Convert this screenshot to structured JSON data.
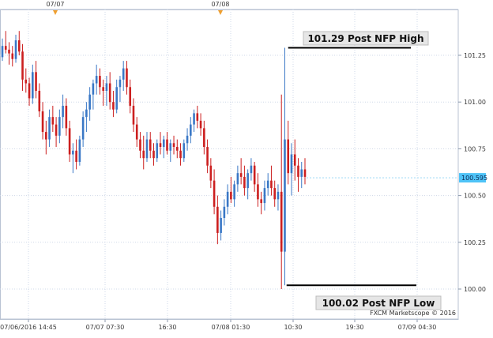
{
  "chart_data": {
    "type": "candlestick",
    "title": "",
    "xlabel": "",
    "ylabel": "",
    "ylim": [
      99.93,
      101.36
    ],
    "y_ticks": [
      "101.25",
      "101.00",
      "100.75",
      "100.50",
      "100.25",
      "100.00"
    ],
    "y_tick_values": [
      101.25,
      101.0,
      100.75,
      100.5,
      100.25,
      100.0
    ],
    "x_ticks": [
      "07/06/2016 14:45",
      "07/07 07:30",
      "16:30",
      "07/08 01:30",
      "10:30",
      "19:30",
      "07/09 04:30"
    ],
    "day_markers": [
      "07/07",
      "07/08"
    ],
    "current_price": "100.595",
    "credit": "FXCM Marketscope © 2016",
    "annotations": [
      {
        "label": "101.29 Post NFP High",
        "value": 101.29
      },
      {
        "label": "100.02 Post NFP Low",
        "value": 100.02
      }
    ],
    "colors": {
      "up": "#3a78c6",
      "down": "#cc1f1f",
      "tag": "#4fc3f7",
      "marker": "#f0a030",
      "grid": "#cfd8e8"
    },
    "candles": [
      [
        101.24,
        101.34,
        101.22,
        101.3
      ],
      [
        101.3,
        101.38,
        101.26,
        101.28
      ],
      [
        101.28,
        101.32,
        101.2,
        101.26
      ],
      [
        101.26,
        101.3,
        101.19,
        101.23
      ],
      [
        101.23,
        101.36,
        101.21,
        101.33
      ],
      [
        101.33,
        101.38,
        101.25,
        101.27
      ],
      [
        101.27,
        101.31,
        101.06,
        101.12
      ],
      [
        101.12,
        101.18,
        101.05,
        101.1
      ],
      [
        101.1,
        101.13,
        100.98,
        101.02
      ],
      [
        101.02,
        101.2,
        100.99,
        101.16
      ],
      [
        101.16,
        101.22,
        101.02,
        101.06
      ],
      [
        101.06,
        101.1,
        100.92,
        100.95
      ],
      [
        100.95,
        101.0,
        100.8,
        100.84
      ],
      [
        100.84,
        100.9,
        100.72,
        100.8
      ],
      [
        100.8,
        100.96,
        100.76,
        100.92
      ],
      [
        100.92,
        100.98,
        100.84,
        100.88
      ],
      [
        100.88,
        100.92,
        100.76,
        100.82
      ],
      [
        100.82,
        100.96,
        100.78,
        100.92
      ],
      [
        100.92,
        101.04,
        100.86,
        100.98
      ],
      [
        100.98,
        101.02,
        100.82,
        100.86
      ],
      [
        100.86,
        100.9,
        100.68,
        100.72
      ],
      [
        100.72,
        100.78,
        100.62,
        100.74
      ],
      [
        100.74,
        100.8,
        100.64,
        100.68
      ],
      [
        100.68,
        100.82,
        100.66,
        100.8
      ],
      [
        100.8,
        100.95,
        100.76,
        100.92
      ],
      [
        100.92,
        101.0,
        100.84,
        100.96
      ],
      [
        100.96,
        101.08,
        100.9,
        101.04
      ],
      [
        101.04,
        101.12,
        100.96,
        101.1
      ],
      [
        101.1,
        101.2,
        101.04,
        101.14
      ],
      [
        101.14,
        101.18,
        101.04,
        101.08
      ],
      [
        101.08,
        101.12,
        100.98,
        101.06
      ],
      [
        101.06,
        101.14,
        100.98,
        101.1
      ],
      [
        101.1,
        101.16,
        100.96,
        101.0
      ],
      [
        101.0,
        101.06,
        100.92,
        100.96
      ],
      [
        100.96,
        101.12,
        100.94,
        101.08
      ],
      [
        101.08,
        101.14,
        101.0,
        101.12
      ],
      [
        101.12,
        101.22,
        101.06,
        101.18
      ],
      [
        101.18,
        101.22,
        101.04,
        101.08
      ],
      [
        101.08,
        101.12,
        100.94,
        100.98
      ],
      [
        100.98,
        101.02,
        100.84,
        100.88
      ],
      [
        100.88,
        100.92,
        100.76,
        100.8
      ],
      [
        100.8,
        100.84,
        100.7,
        100.74
      ],
      [
        100.74,
        100.82,
        100.64,
        100.7
      ],
      [
        100.7,
        100.84,
        100.68,
        100.8
      ],
      [
        100.8,
        100.84,
        100.7,
        100.74
      ],
      [
        100.74,
        100.78,
        100.66,
        100.7
      ],
      [
        100.7,
        100.8,
        100.68,
        100.78
      ],
      [
        100.78,
        100.84,
        100.72,
        100.76
      ],
      [
        100.76,
        100.82,
        100.7,
        100.8
      ],
      [
        100.8,
        100.84,
        100.72,
        100.74
      ],
      [
        100.74,
        100.8,
        100.68,
        100.78
      ],
      [
        100.78,
        100.82,
        100.72,
        100.76
      ],
      [
        100.76,
        100.8,
        100.7,
        100.74
      ],
      [
        100.74,
        100.78,
        100.66,
        100.7
      ],
      [
        100.7,
        100.8,
        100.68,
        100.78
      ],
      [
        100.78,
        100.86,
        100.74,
        100.82
      ],
      [
        100.82,
        100.92,
        100.78,
        100.88
      ],
      [
        100.88,
        100.96,
        100.84,
        100.94
      ],
      [
        100.94,
        100.98,
        100.86,
        100.9
      ],
      [
        100.9,
        100.94,
        100.82,
        100.86
      ],
      [
        100.86,
        100.9,
        100.72,
        100.76
      ],
      [
        100.76,
        100.8,
        100.62,
        100.66
      ],
      [
        100.66,
        100.7,
        100.54,
        100.58
      ],
      [
        100.58,
        100.64,
        100.4,
        100.44
      ],
      [
        100.44,
        100.5,
        100.24,
        100.3
      ],
      [
        100.3,
        100.42,
        100.26,
        100.38
      ],
      [
        100.38,
        100.48,
        100.34,
        100.44
      ],
      [
        100.44,
        100.56,
        100.4,
        100.52
      ],
      [
        100.52,
        100.6,
        100.46,
        100.48
      ],
      [
        100.48,
        100.58,
        100.44,
        100.56
      ],
      [
        100.56,
        100.66,
        100.52,
        100.62
      ],
      [
        100.62,
        100.7,
        100.56,
        100.6
      ],
      [
        100.6,
        100.66,
        100.5,
        100.54
      ],
      [
        100.54,
        100.64,
        100.48,
        100.62
      ],
      [
        100.62,
        100.7,
        100.58,
        100.66
      ],
      [
        100.66,
        100.68,
        100.52,
        100.56
      ],
      [
        100.56,
        100.62,
        100.44,
        100.48
      ],
      [
        100.48,
        100.52,
        100.4,
        100.46
      ],
      [
        100.46,
        100.58,
        100.42,
        100.54
      ],
      [
        100.54,
        100.62,
        100.5,
        100.58
      ],
      [
        100.58,
        100.66,
        100.5,
        100.54
      ],
      [
        100.54,
        100.58,
        100.44,
        100.48
      ],
      [
        100.48,
        100.56,
        100.42,
        100.52
      ],
      [
        100.52,
        101.04,
        100.0,
        100.2
      ],
      [
        100.2,
        101.29,
        100.02,
        100.8
      ],
      [
        100.8,
        100.9,
        100.56,
        100.62
      ],
      [
        100.62,
        100.78,
        100.5,
        100.72
      ],
      [
        100.72,
        100.8,
        100.58,
        100.66
      ],
      [
        100.66,
        100.7,
        100.52,
        100.6
      ],
      [
        100.6,
        100.68,
        100.54,
        100.64
      ],
      [
        100.64,
        100.7,
        100.56,
        100.6
      ]
    ]
  }
}
